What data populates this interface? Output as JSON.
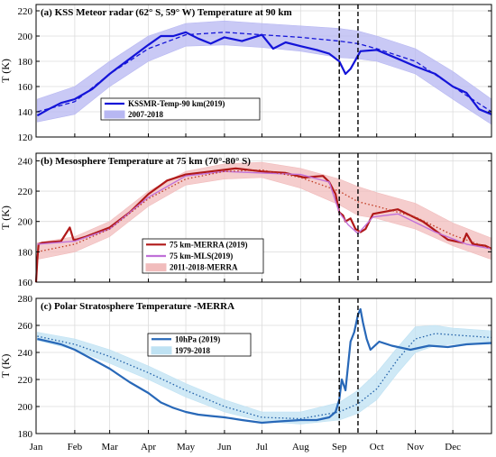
{
  "colors": {
    "blue_main": "#1414d8",
    "blue_band": "#b7b7f2",
    "red_main": "#b01818",
    "red_dot": "#c03a20",
    "red_band": "#f1bcbc",
    "purple": "#c070d8",
    "steel_main": "#2868b8",
    "steel_dot": "#2060a8",
    "steel_band": "#bfe2f3",
    "grid": "#dcdcdc",
    "vline": "#000000"
  },
  "chart_data": [
    {
      "type": "line",
      "title": "(a) KSS Meteor radar (62° S, 59° W) Temperature at 90 km",
      "xlabel": "",
      "ylabel": "T (K)",
      "xlim": [
        0,
        365
      ],
      "ylim": [
        120,
        225
      ],
      "yticks": [
        120,
        140,
        160,
        180,
        200,
        220
      ],
      "grid": true,
      "legend_position": "lower-center",
      "series": [
        {
          "name": "KSSMR-Temp-90 km(2019)",
          "style": "solid",
          "x": [
            1,
            10,
            20,
            31,
            45,
            59,
            75,
            90,
            100,
            110,
            120,
            130,
            140,
            151,
            165,
            181,
            190,
            200,
            212,
            225,
            235,
            243,
            248,
            252,
            260,
            273,
            290,
            304,
            320,
            334,
            345,
            355,
            365
          ],
          "values": [
            137,
            142,
            147,
            150,
            158,
            170,
            182,
            193,
            200,
            200,
            203,
            198,
            194,
            199,
            196,
            201,
            190,
            195,
            192,
            189,
            186,
            180,
            170,
            174,
            188,
            189,
            182,
            176,
            170,
            160,
            155,
            142,
            138
          ]
        },
        {
          "name": "2007-2018",
          "style": "dashed-mean-with-band",
          "x": [
            1,
            31,
            59,
            90,
            120,
            151,
            181,
            212,
            243,
            258,
            273,
            304,
            334,
            365
          ],
          "values": [
            140,
            148,
            170,
            190,
            201,
            203,
            201,
            199,
            196,
            194,
            190,
            180,
            160,
            140
          ],
          "band_low": [
            132,
            138,
            160,
            180,
            192,
            193,
            191,
            188,
            183,
            182,
            180,
            170,
            150,
            130
          ],
          "band_high": [
            150,
            160,
            180,
            200,
            210,
            212,
            210,
            208,
            206,
            204,
            200,
            190,
            172,
            150
          ]
        }
      ],
      "vlines_day": [
        243,
        258
      ]
    },
    {
      "type": "line",
      "title": "(b) Mesosphere Temperature at 75 km (70°-80° S)",
      "xlabel": "",
      "ylabel": "T (K)",
      "xlim": [
        0,
        365
      ],
      "ylim": [
        160,
        245
      ],
      "yticks": [
        160,
        180,
        200,
        220,
        240
      ],
      "grid": true,
      "legend_position": "lower-center",
      "series": [
        {
          "name": "75 km-MERRA (2019)",
          "style": "solid",
          "x": [
            0,
            1,
            2,
            5,
            20,
            27,
            30,
            32,
            40,
            59,
            75,
            90,
            105,
            120,
            140,
            160,
            181,
            200,
            215,
            230,
            235,
            240,
            243,
            246,
            248,
            252,
            256,
            260,
            264,
            270,
            290,
            310,
            330,
            342,
            345,
            350,
            360,
            365
          ],
          "values": [
            160,
            175,
            185,
            186,
            187,
            196,
            188,
            188,
            190,
            196,
            206,
            218,
            227,
            231,
            233,
            235,
            233,
            232,
            229,
            230,
            226,
            218,
            206,
            204,
            200,
            202,
            195,
            193,
            195,
            205,
            208,
            200,
            188,
            186,
            192,
            185,
            184,
            182
          ]
        },
        {
          "name": "75 km-MLS(2019)",
          "style": "solid",
          "x": [
            1,
            31,
            59,
            90,
            120,
            151,
            181,
            212,
            235,
            243,
            250,
            258,
            270,
            290,
            320,
            345,
            365
          ],
          "values": [
            185,
            187,
            195,
            216,
            230,
            233,
            232,
            231,
            226,
            206,
            198,
            192,
            203,
            205,
            193,
            185,
            182
          ]
        },
        {
          "name": "2011-2018-MERRA",
          "style": "dotted-mean-with-band",
          "x": [
            1,
            31,
            59,
            90,
            120,
            151,
            181,
            212,
            243,
            258,
            273,
            304,
            334,
            365
          ],
          "values": [
            180,
            185,
            195,
            215,
            228,
            233,
            234,
            229,
            220,
            213,
            210,
            203,
            191,
            182
          ],
          "band_low": [
            175,
            180,
            190,
            210,
            224,
            228,
            229,
            222,
            211,
            204,
            202,
            195,
            184,
            175
          ],
          "band_high": [
            186,
            190,
            200,
            220,
            233,
            238,
            239,
            235,
            228,
            223,
            219,
            212,
            199,
            189
          ]
        }
      ],
      "vlines_day": [
        243,
        258
      ]
    },
    {
      "type": "line",
      "title": "(c) Polar Stratosphere Temperature -MERRA",
      "xlabel": "",
      "ylabel": "T (K)",
      "xlim": [
        0,
        365
      ],
      "ylim": [
        180,
        280
      ],
      "yticks": [
        180,
        200,
        220,
        240,
        260,
        280
      ],
      "grid": true,
      "legend_position": "top-center",
      "series": [
        {
          "name": "10hPa (2019)",
          "style": "solid",
          "x": [
            1,
            20,
            31,
            45,
            59,
            75,
            90,
            100,
            110,
            120,
            130,
            140,
            151,
            165,
            181,
            195,
            212,
            225,
            235,
            240,
            243,
            245,
            248,
            250,
            252,
            255,
            258,
            260,
            262,
            265,
            268,
            275,
            285,
            300,
            315,
            330,
            345,
            365
          ],
          "values": [
            250,
            246,
            242,
            235,
            228,
            218,
            210,
            203,
            199,
            196,
            194,
            193,
            192,
            190,
            188,
            189,
            190,
            190,
            192,
            196,
            205,
            220,
            212,
            230,
            248,
            255,
            268,
            272,
            262,
            250,
            242,
            248,
            245,
            242,
            245,
            244,
            246,
            247
          ]
        },
        {
          "name": "1979-2018",
          "style": "dotted-mean-with-band",
          "x": [
            1,
            31,
            59,
            90,
            120,
            151,
            181,
            212,
            243,
            258,
            273,
            290,
            304,
            320,
            334,
            365
          ],
          "values": [
            252,
            246,
            237,
            225,
            212,
            200,
            192,
            191,
            196,
            202,
            213,
            235,
            250,
            254,
            253,
            251
          ],
          "band_low": [
            249,
            242,
            232,
            220,
            207,
            196,
            189,
            187,
            190,
            195,
            205,
            225,
            240,
            245,
            246,
            246
          ],
          "band_high": [
            255,
            250,
            242,
            230,
            217,
            205,
            196,
            196,
            203,
            212,
            225,
            244,
            259,
            260,
            258,
            256
          ]
        }
      ],
      "vlines_day": [
        243,
        258
      ]
    }
  ],
  "x_axis": {
    "month_labels": [
      "Jan",
      "Feb",
      "Mar",
      "Apr",
      "May",
      "Jun",
      "Jul",
      "Aug",
      "Sep",
      "Oct",
      "Nov",
      "Dec"
    ],
    "month_start_days": [
      0,
      31,
      59,
      90,
      120,
      151,
      181,
      212,
      243,
      273,
      304,
      334
    ]
  }
}
